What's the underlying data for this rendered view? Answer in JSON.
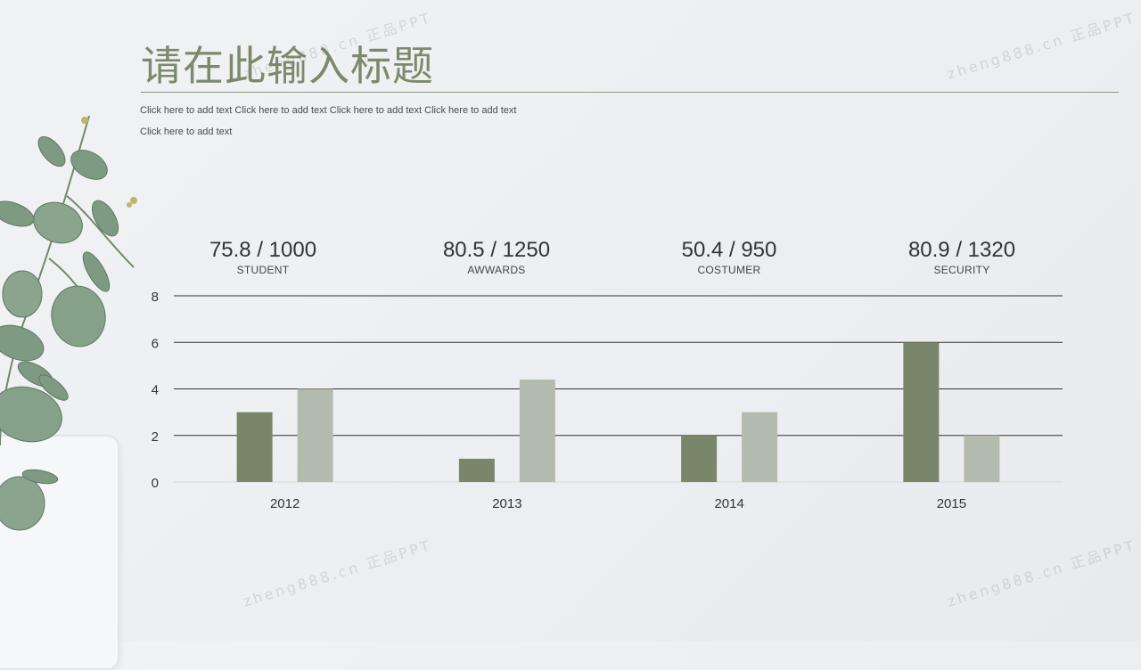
{
  "header": {
    "title": "请在此输入标题",
    "subtitle": "Click here to add text Click here to add text Click here to add text Click here to add text  Click here to add text"
  },
  "stats": [
    {
      "value": "75.8 / 1000",
      "label": "STUDENT"
    },
    {
      "value": "80.5 / 1250",
      "label": "AWWARDS"
    },
    {
      "value": "50.4 / 950",
      "label": "COSTUMER"
    },
    {
      "value": "80.9 / 1320",
      "label": "SECURITY"
    }
  ],
  "watermark": "zheng888.cn 正品PPT",
  "colors": {
    "series1": "#79866a",
    "series2": "#b3bbae",
    "title": "#7b8a6a",
    "gridline": "#333333"
  },
  "chart_data": {
    "type": "bar",
    "categories": [
      "2012",
      "2013",
      "2014",
      "2015"
    ],
    "series": [
      {
        "values": [
          3,
          1,
          2,
          6
        ]
      },
      {
        "values": [
          4,
          4.4,
          3,
          2
        ]
      }
    ],
    "ylim": [
      0,
      8
    ],
    "yticks": [
      0,
      2,
      4,
      6,
      8
    ],
    "grid": true,
    "title": "",
    "xlabel": "",
    "ylabel": ""
  }
}
